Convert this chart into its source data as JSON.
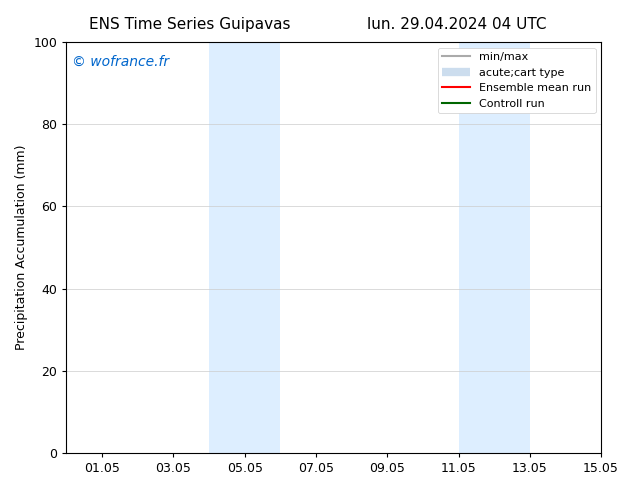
{
  "title_left": "ENS Time Series Guipavas",
  "title_right": "lun. 29.04.2024 04 UTC",
  "ylabel": "Precipitation Accumulation (mm)",
  "xlim_left": 0.0,
  "xlim_right": 15.0,
  "ylim_bottom": 0,
  "ylim_top": 100,
  "yticks": [
    0,
    20,
    40,
    60,
    80,
    100
  ],
  "xtick_labels": [
    "01.05",
    "03.05",
    "05.05",
    "07.05",
    "09.05",
    "11.05",
    "13.05",
    "15.05"
  ],
  "xtick_positions": [
    1.0,
    3.0,
    5.0,
    7.0,
    9.0,
    11.0,
    13.0,
    15.0
  ],
  "watermark": "© wofrance.fr",
  "watermark_color": "#0066cc",
  "background_color": "#ffffff",
  "plot_bg_color": "#ffffff",
  "shaded_regions": [
    {
      "xmin": 4.0,
      "xmax": 6.0,
      "color": "#ddeeff"
    },
    {
      "xmin": 11.0,
      "xmax": 13.0,
      "color": "#ddeeff"
    }
  ],
  "legend_entries": [
    {
      "label": "min/max",
      "color": "#aaaaaa",
      "linewidth": 1.5,
      "linestyle": "-"
    },
    {
      "label": "acute;cart type",
      "color": "#ccddee",
      "linewidth": 6,
      "linestyle": "-"
    },
    {
      "label": "Ensemble mean run",
      "color": "#ff0000",
      "linewidth": 1.5,
      "linestyle": "-"
    },
    {
      "label": "Controll run",
      "color": "#006600",
      "linewidth": 1.5,
      "linestyle": "-"
    }
  ],
  "grid_color": "#cccccc",
  "grid_linewidth": 0.5,
  "spine_color": "#000000",
  "tick_color": "#000000",
  "font_size_title": 11,
  "font_size_axis": 9,
  "font_size_tick": 9,
  "font_size_legend": 8,
  "font_size_watermark": 10
}
